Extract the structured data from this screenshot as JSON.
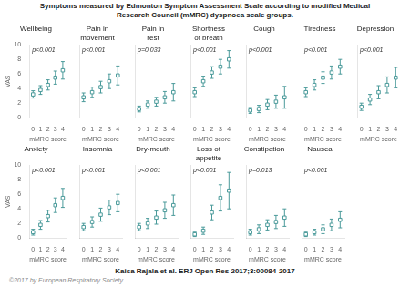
{
  "title": "Symptoms measured by Edmonton Symptom Assessment Scale according to modified Medical\nResearch Council (mMRC) dyspnoea scale groups.",
  "annotations": [
    "Kaisa Rajala et al. ERJ Open Res 2017;3:00084-2017",
    "©2017 by European Respiratory Society"
  ],
  "chart_data": [
    {
      "type": "scatter",
      "title": "Wellbeing",
      "x": [
        0,
        1,
        2,
        3,
        4
      ],
      "values": [
        3.2,
        3.8,
        4.5,
        5.5,
        6.5
      ],
      "errors": [
        0.5,
        0.6,
        0.7,
        0.9,
        1.2
      ],
      "color": "#4a9a9a",
      "marker": "square",
      "xlabel": "mMRC score",
      "ylabel": "VAS",
      "xlim": [
        -0.5,
        4.5
      ],
      "xticks": [
        0,
        1,
        2,
        3,
        4
      ],
      "ylim": [
        0,
        10
      ],
      "yticks": [
        0,
        2,
        4,
        6,
        8,
        10
      ],
      "grid": false,
      "annotations": [
        "p<0.001"
      ]
    },
    {
      "type": "scatter",
      "title": "Pain in\nmovement",
      "x": [
        0,
        1,
        2,
        3,
        4
      ],
      "values": [
        2.8,
        3.5,
        4.2,
        5.0,
        5.8
      ],
      "errors": [
        0.6,
        0.7,
        0.8,
        1.0,
        1.3
      ],
      "color": "#4a9a9a",
      "marker": "square",
      "xlabel": "mMRC score",
      "xlim": [
        -0.5,
        4.5
      ],
      "xticks": [
        0,
        1,
        2,
        3,
        4
      ],
      "ylim": [
        0,
        10
      ],
      "yticks": [
        0,
        2,
        4,
        6,
        8,
        10
      ],
      "grid": false,
      "tick_labels": "x",
      "annotations": [
        "p<0.001"
      ]
    },
    {
      "type": "scatter",
      "title": "Pain in\nrest",
      "x": [
        0,
        1,
        2,
        3,
        4
      ],
      "values": [
        1.2,
        1.8,
        2.2,
        2.8,
        3.5
      ],
      "errors": [
        0.4,
        0.5,
        0.6,
        0.8,
        1.2
      ],
      "color": "#4a9a9a",
      "marker": "square",
      "xlabel": "mMRC score",
      "xlim": [
        -0.5,
        4.5
      ],
      "xticks": [
        0,
        1,
        2,
        3,
        4
      ],
      "ylim": [
        0,
        10
      ],
      "yticks": [
        0,
        2,
        4,
        6,
        8,
        10
      ],
      "grid": false,
      "tick_labels": "x",
      "annotations": [
        "p=0.033"
      ]
    },
    {
      "type": "scatter",
      "title": "Shortness\nof breath",
      "x": [
        0,
        1,
        2,
        3,
        4
      ],
      "values": [
        3.5,
        5.0,
        6.2,
        7.0,
        8.0
      ],
      "errors": [
        0.6,
        0.7,
        0.8,
        1.0,
        1.2
      ],
      "color": "#4a9a9a",
      "marker": "square",
      "xlabel": "mMRC score",
      "xlim": [
        -0.5,
        4.5
      ],
      "xticks": [
        0,
        1,
        2,
        3,
        4
      ],
      "ylim": [
        0,
        10
      ],
      "yticks": [
        0,
        2,
        4,
        6,
        8,
        10
      ],
      "grid": false,
      "tick_labels": "x",
      "annotations": [
        "p<0.001"
      ]
    },
    {
      "type": "scatter",
      "title": "Cough",
      "x": [
        0,
        1,
        2,
        3,
        4
      ],
      "values": [
        1.0,
        1.2,
        1.8,
        2.2,
        2.8
      ],
      "errors": [
        0.4,
        0.5,
        0.7,
        0.9,
        1.5
      ],
      "color": "#4a9a9a",
      "marker": "square",
      "xlabel": "mMRC score",
      "xlim": [
        -0.5,
        4.5
      ],
      "xticks": [
        0,
        1,
        2,
        3,
        4
      ],
      "ylim": [
        0,
        10
      ],
      "yticks": [
        0,
        2,
        4,
        6,
        8,
        10
      ],
      "grid": false,
      "tick_labels": "x",
      "annotations": [
        "p<0.001"
      ]
    },
    {
      "type": "scatter",
      "title": "Tiredness",
      "x": [
        0,
        1,
        2,
        3,
        4
      ],
      "values": [
        3.5,
        4.5,
        5.5,
        6.2,
        7.0
      ],
      "errors": [
        0.6,
        0.7,
        0.8,
        0.9,
        1.0
      ],
      "color": "#4a9a9a",
      "marker": "square",
      "xlabel": "mMRC score",
      "xlim": [
        -0.5,
        4.5
      ],
      "xticks": [
        0,
        1,
        2,
        3,
        4
      ],
      "ylim": [
        0,
        10
      ],
      "yticks": [
        0,
        2,
        4,
        6,
        8,
        10
      ],
      "grid": false,
      "tick_labels": "x",
      "annotations": [
        "p<0.001"
      ]
    },
    {
      "type": "scatter",
      "title": "Depression",
      "x": [
        0,
        1,
        2,
        3,
        4
      ],
      "values": [
        1.5,
        2.5,
        3.5,
        4.5,
        5.5
      ],
      "errors": [
        0.5,
        0.7,
        0.9,
        1.1,
        1.4
      ],
      "color": "#4a9a9a",
      "marker": "square",
      "xlabel": "mMRC score",
      "xlim": [
        -0.5,
        4.5
      ],
      "xticks": [
        0,
        1,
        2,
        3,
        4
      ],
      "ylim": [
        0,
        10
      ],
      "yticks": [
        0,
        2,
        4,
        6,
        8,
        10
      ],
      "grid": false,
      "tick_labels": "x",
      "annotations": [
        "p<0.001"
      ]
    },
    {
      "type": "scatter",
      "title": "Anxiety",
      "x": [
        0,
        1,
        2,
        3,
        4
      ],
      "values": [
        0.8,
        1.8,
        3.0,
        4.5,
        5.5
      ],
      "errors": [
        0.4,
        0.6,
        0.8,
        1.0,
        1.3
      ],
      "color": "#4a9a9a",
      "marker": "square",
      "xlabel": "mMRC score",
      "ylabel": "VAS",
      "xlim": [
        -0.5,
        4.5
      ],
      "xticks": [
        0,
        1,
        2,
        3,
        4
      ],
      "ylim": [
        0,
        10
      ],
      "yticks": [
        0,
        2,
        4,
        6,
        8,
        10
      ],
      "grid": false,
      "annotations": [
        "p<0.001"
      ]
    },
    {
      "type": "scatter",
      "title": "Insomnia",
      "x": [
        0,
        1,
        2,
        3,
        4
      ],
      "values": [
        1.5,
        2.2,
        3.2,
        4.2,
        4.8
      ],
      "errors": [
        0.5,
        0.7,
        0.9,
        1.0,
        1.2
      ],
      "color": "#4a9a9a",
      "marker": "square",
      "xlabel": "mMRC score",
      "xlim": [
        -0.5,
        4.5
      ],
      "xticks": [
        0,
        1,
        2,
        3,
        4
      ],
      "ylim": [
        0,
        10
      ],
      "yticks": [
        0,
        2,
        4,
        6,
        8,
        10
      ],
      "grid": false,
      "tick_labels": "x",
      "annotations": [
        "p<0.001"
      ]
    },
    {
      "type": "scatter",
      "title": "Dry-mouth",
      "x": [
        0,
        1,
        2,
        3,
        4
      ],
      "values": [
        1.5,
        2.0,
        2.8,
        3.8,
        4.5
      ],
      "errors": [
        0.5,
        0.7,
        0.9,
        1.1,
        1.4
      ],
      "color": "#4a9a9a",
      "marker": "square",
      "xlabel": "mMRC score",
      "xlim": [
        -0.5,
        4.5
      ],
      "xticks": [
        0,
        1,
        2,
        3,
        4
      ],
      "ylim": [
        0,
        10
      ],
      "yticks": [
        0,
        2,
        4,
        6,
        8,
        10
      ],
      "grid": false,
      "tick_labels": "x",
      "annotations": [
        "p<0.001"
      ]
    },
    {
      "type": "scatter",
      "title": "Loss of\nappetite",
      "x": [
        0,
        1,
        2,
        3,
        4
      ],
      "values": [
        0.5,
        1.0,
        3.5,
        5.5,
        6.5
      ],
      "errors": [
        0.3,
        0.5,
        1.0,
        1.8,
        2.5
      ],
      "color": "#4a9a9a",
      "marker": "square",
      "xlabel": "mMRC score",
      "xlim": [
        -0.5,
        4.5
      ],
      "xticks": [
        0,
        1,
        2,
        3,
        4
      ],
      "ylim": [
        0,
        10
      ],
      "yticks": [
        0,
        2,
        4,
        6,
        8,
        10
      ],
      "grid": false,
      "tick_labels": "x",
      "annotations": [
        "p<0.001"
      ]
    },
    {
      "type": "scatter",
      "title": "Constipation",
      "x": [
        0,
        1,
        2,
        3,
        4
      ],
      "values": [
        0.8,
        1.2,
        1.8,
        2.2,
        2.8
      ],
      "errors": [
        0.4,
        0.6,
        0.7,
        0.9,
        1.2
      ],
      "color": "#4a9a9a",
      "marker": "square",
      "xlabel": "mMRC score",
      "xlim": [
        -0.5,
        4.5
      ],
      "xticks": [
        0,
        1,
        2,
        3,
        4
      ],
      "ylim": [
        0,
        10
      ],
      "yticks": [
        0,
        2,
        4,
        6,
        8,
        10
      ],
      "grid": false,
      "tick_labels": "x",
      "annotations": [
        "p=0.013"
      ]
    },
    {
      "type": "scatter",
      "title": "Nausea",
      "x": [
        0,
        1,
        2,
        3,
        4
      ],
      "values": [
        0.5,
        0.8,
        1.2,
        1.8,
        2.5
      ],
      "errors": [
        0.3,
        0.4,
        0.6,
        0.8,
        1.1
      ],
      "color": "#4a9a9a",
      "marker": "square",
      "xlabel": "mMRC score",
      "xlim": [
        -0.5,
        4.5
      ],
      "xticks": [
        0,
        1,
        2,
        3,
        4
      ],
      "ylim": [
        0,
        10
      ],
      "yticks": [
        0,
        2,
        4,
        6,
        8,
        10
      ],
      "grid": false,
      "tick_labels": "x",
      "annotations": [
        "p<0.001"
      ]
    }
  ]
}
